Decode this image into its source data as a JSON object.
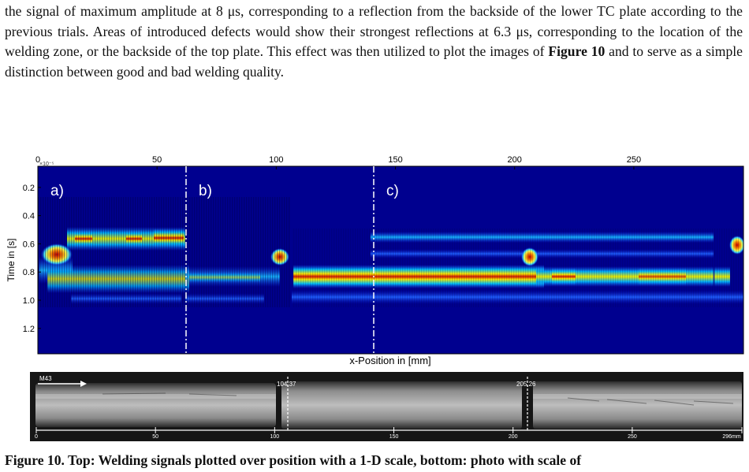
{
  "paragraph": {
    "line1": "the signal of maximum amplitude at 8 μs, corresponding to a reflection from the backside of the",
    "line2": "lower TC plate according to the previous trials. Areas of introduced defects would show their",
    "line3": "strongest reflections at 6.3 μs, corresponding to the location of the welding zone, or the backside",
    "line4_pre": "of the top plate. This effect was then utilized to plot the images of ",
    "line4_bold": "Figure 10",
    "line4_post": " and to serve as a",
    "line5": "simple distinction between good and bad welding quality."
  },
  "figure": {
    "top_axis_ticks": [
      "0",
      "50",
      "100",
      "150",
      "200",
      "250"
    ],
    "exponent_label": "×10⁻⁵",
    "y_ticks": [
      "0.2",
      "0.4",
      "0.6",
      "0.8",
      "1.0",
      "1.2"
    ],
    "y_label": "Time in [s]",
    "x_label": "x-Position in [mm]",
    "region_labels": [
      "a)",
      "b)",
      "c)"
    ],
    "photo": {
      "sample_label": "M43",
      "markers": [
        "104,37",
        "205,26"
      ],
      "scale_ticks": [
        "0",
        "50",
        "100",
        "150",
        "200",
        "250",
        "296mm"
      ]
    },
    "colors": {
      "background": "#00008f",
      "signal_peak": "#d81a00"
    }
  },
  "caption": {
    "prefix": "Figure 10. Top: Welding signals plotted over position with a 1-D scale, bottom: photo with scale of"
  }
}
